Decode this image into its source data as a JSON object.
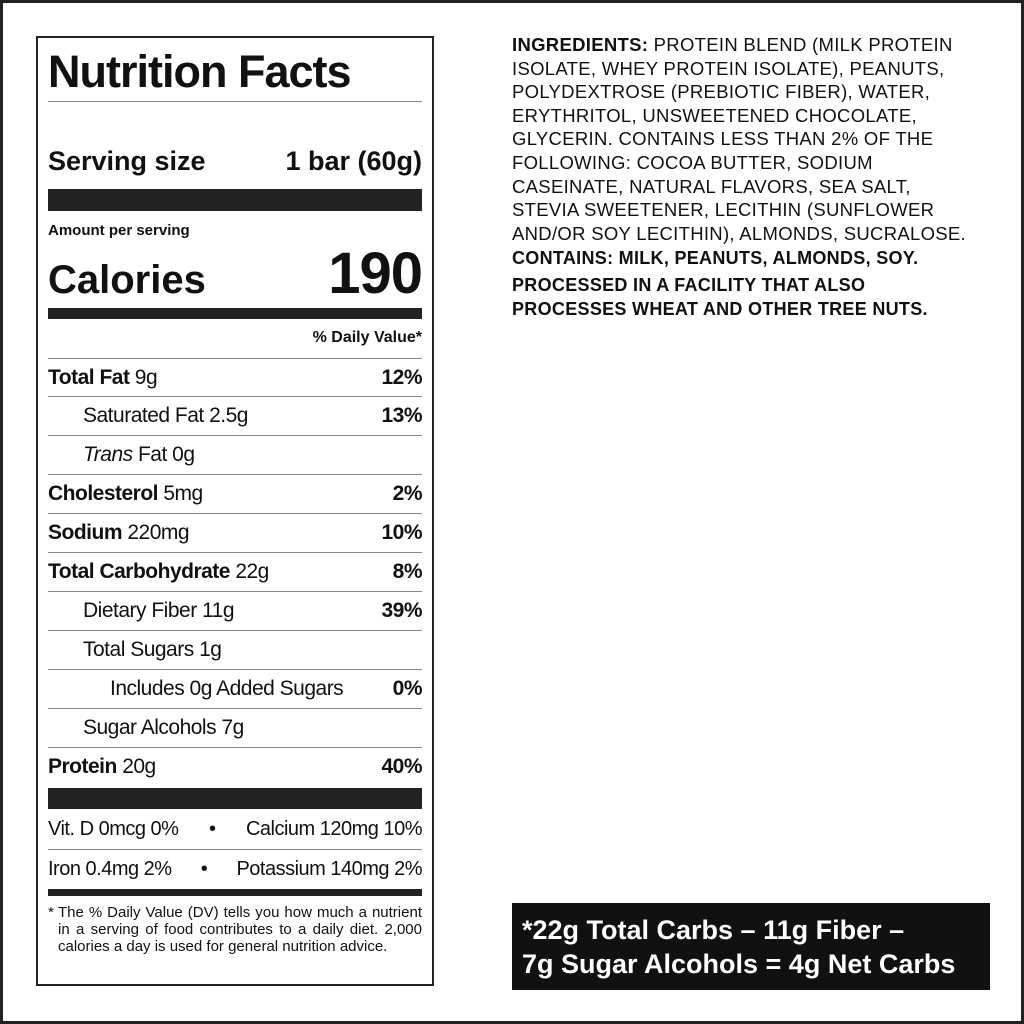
{
  "label": {
    "title": "Nutrition Facts",
    "serving_size_label": "Serving size",
    "serving_size_value": "1 bar (60g)",
    "amount_per_serving": "Amount per serving",
    "calories_label": "Calories",
    "calories_value": "190",
    "dv_header": "% Daily Value*",
    "nutrients": [
      {
        "name": "Total Fat",
        "amount": "9g",
        "dv": "12%"
      },
      {
        "name": "Saturated Fat 2.5g",
        "amount": "",
        "dv": "13%"
      },
      {
        "name_italic": "Trans",
        "name": "Fat 0g",
        "amount": "",
        "dv": ""
      },
      {
        "name": "Cholesterol",
        "amount": "5mg",
        "dv": "2%"
      },
      {
        "name": "Sodium",
        "amount": "220mg",
        "dv": "10%"
      },
      {
        "name": "Total Carbohydrate",
        "amount": "22g",
        "dv": "8%"
      },
      {
        "name": "Dietary Fiber 11g",
        "amount": "",
        "dv": "39%"
      },
      {
        "name": "Total Sugars 1g",
        "amount": "",
        "dv": ""
      },
      {
        "name": "Includes 0g Added Sugars",
        "amount": "",
        "dv": "0%"
      },
      {
        "name": "Sugar Alcohols 7g",
        "amount": "",
        "dv": ""
      },
      {
        "name": "Protein",
        "amount": "20g",
        "dv": "40%"
      }
    ],
    "vitamins": [
      {
        "left": "Vit. D 0mcg 0%",
        "bullet": "•",
        "right": "Calcium 120mg 10%"
      },
      {
        "left": "Iron 0.4mg 2%",
        "bullet": "•",
        "right": "Potassium 140mg 2%"
      }
    ],
    "footnote_star": "*",
    "footnote": "The % Daily Value (DV) tells you how much a nutrient in a serving of food contributes to a daily diet. 2,000 calories a day is used for general nutrition advice."
  },
  "ingredients": {
    "heading": "INGREDIENTS:",
    "lines": [
      "PROTEIN BLEND (MILK PROTEIN",
      "ISOLATE, WHEY PROTEIN ISOLATE), PEANUTS,",
      "POLYDEXTROSE (PREBIOTIC FIBER), WATER,",
      "ERYTHRITOL, UNSWEETENED CHOCOLATE,",
      "GLYCERIN. CONTAINS LESS THAN 2% OF THE",
      "FOLLOWING: COCOA BUTTER, SODIUM",
      "CASEINATE, NATURAL FLAVORS, SEA SALT,",
      "STEVIA SWEETENER, LECITHIN (SUNFLOWER",
      "AND/OR SOY LECITHIN), ALMONDS, SUCRALOSE."
    ],
    "contains": "CONTAINS: MILK, PEANUTS, ALMONDS, SOY.",
    "facility_lines": [
      "PROCESSED IN A FACILITY THAT ALSO",
      "PROCESSES WHEAT AND OTHER TREE NUTS."
    ]
  },
  "net_carbs": {
    "line1": "*22g Total Carbs – 11g Fiber –",
    "line2": "7g Sugar Alcohols = 4g Net Carbs"
  }
}
